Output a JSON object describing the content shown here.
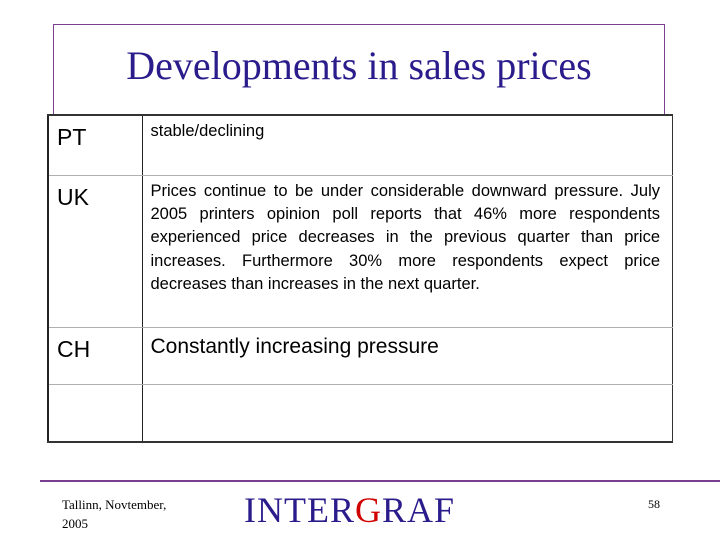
{
  "slide": {
    "title": "Developments in sales prices",
    "rows": [
      {
        "country": "PT",
        "text": "stable/declining"
      },
      {
        "country": "UK",
        "text": "Prices continue to be under considerable downward pressure.  July 2005 printers opinion poll reports that 46% more respondents experienced price decreases in the previous quarter than price increases.  Furthermore 30% more respondents expect price decreases than increases in the next quarter."
      },
      {
        "country": "CH",
        "text": "Constantly increasing pressure"
      },
      {
        "country": "",
        "text": ""
      }
    ]
  },
  "footer": {
    "place_date": "Tallinn, Novtember, 2005",
    "logo": {
      "part1": "I",
      "part2": "NTER",
      "part3": "G",
      "part4": "RAF"
    },
    "page_number": "58"
  },
  "colors": {
    "title": "#2b1c8c",
    "frame": "#7a3f8f",
    "logo_accent": "#d10000"
  }
}
